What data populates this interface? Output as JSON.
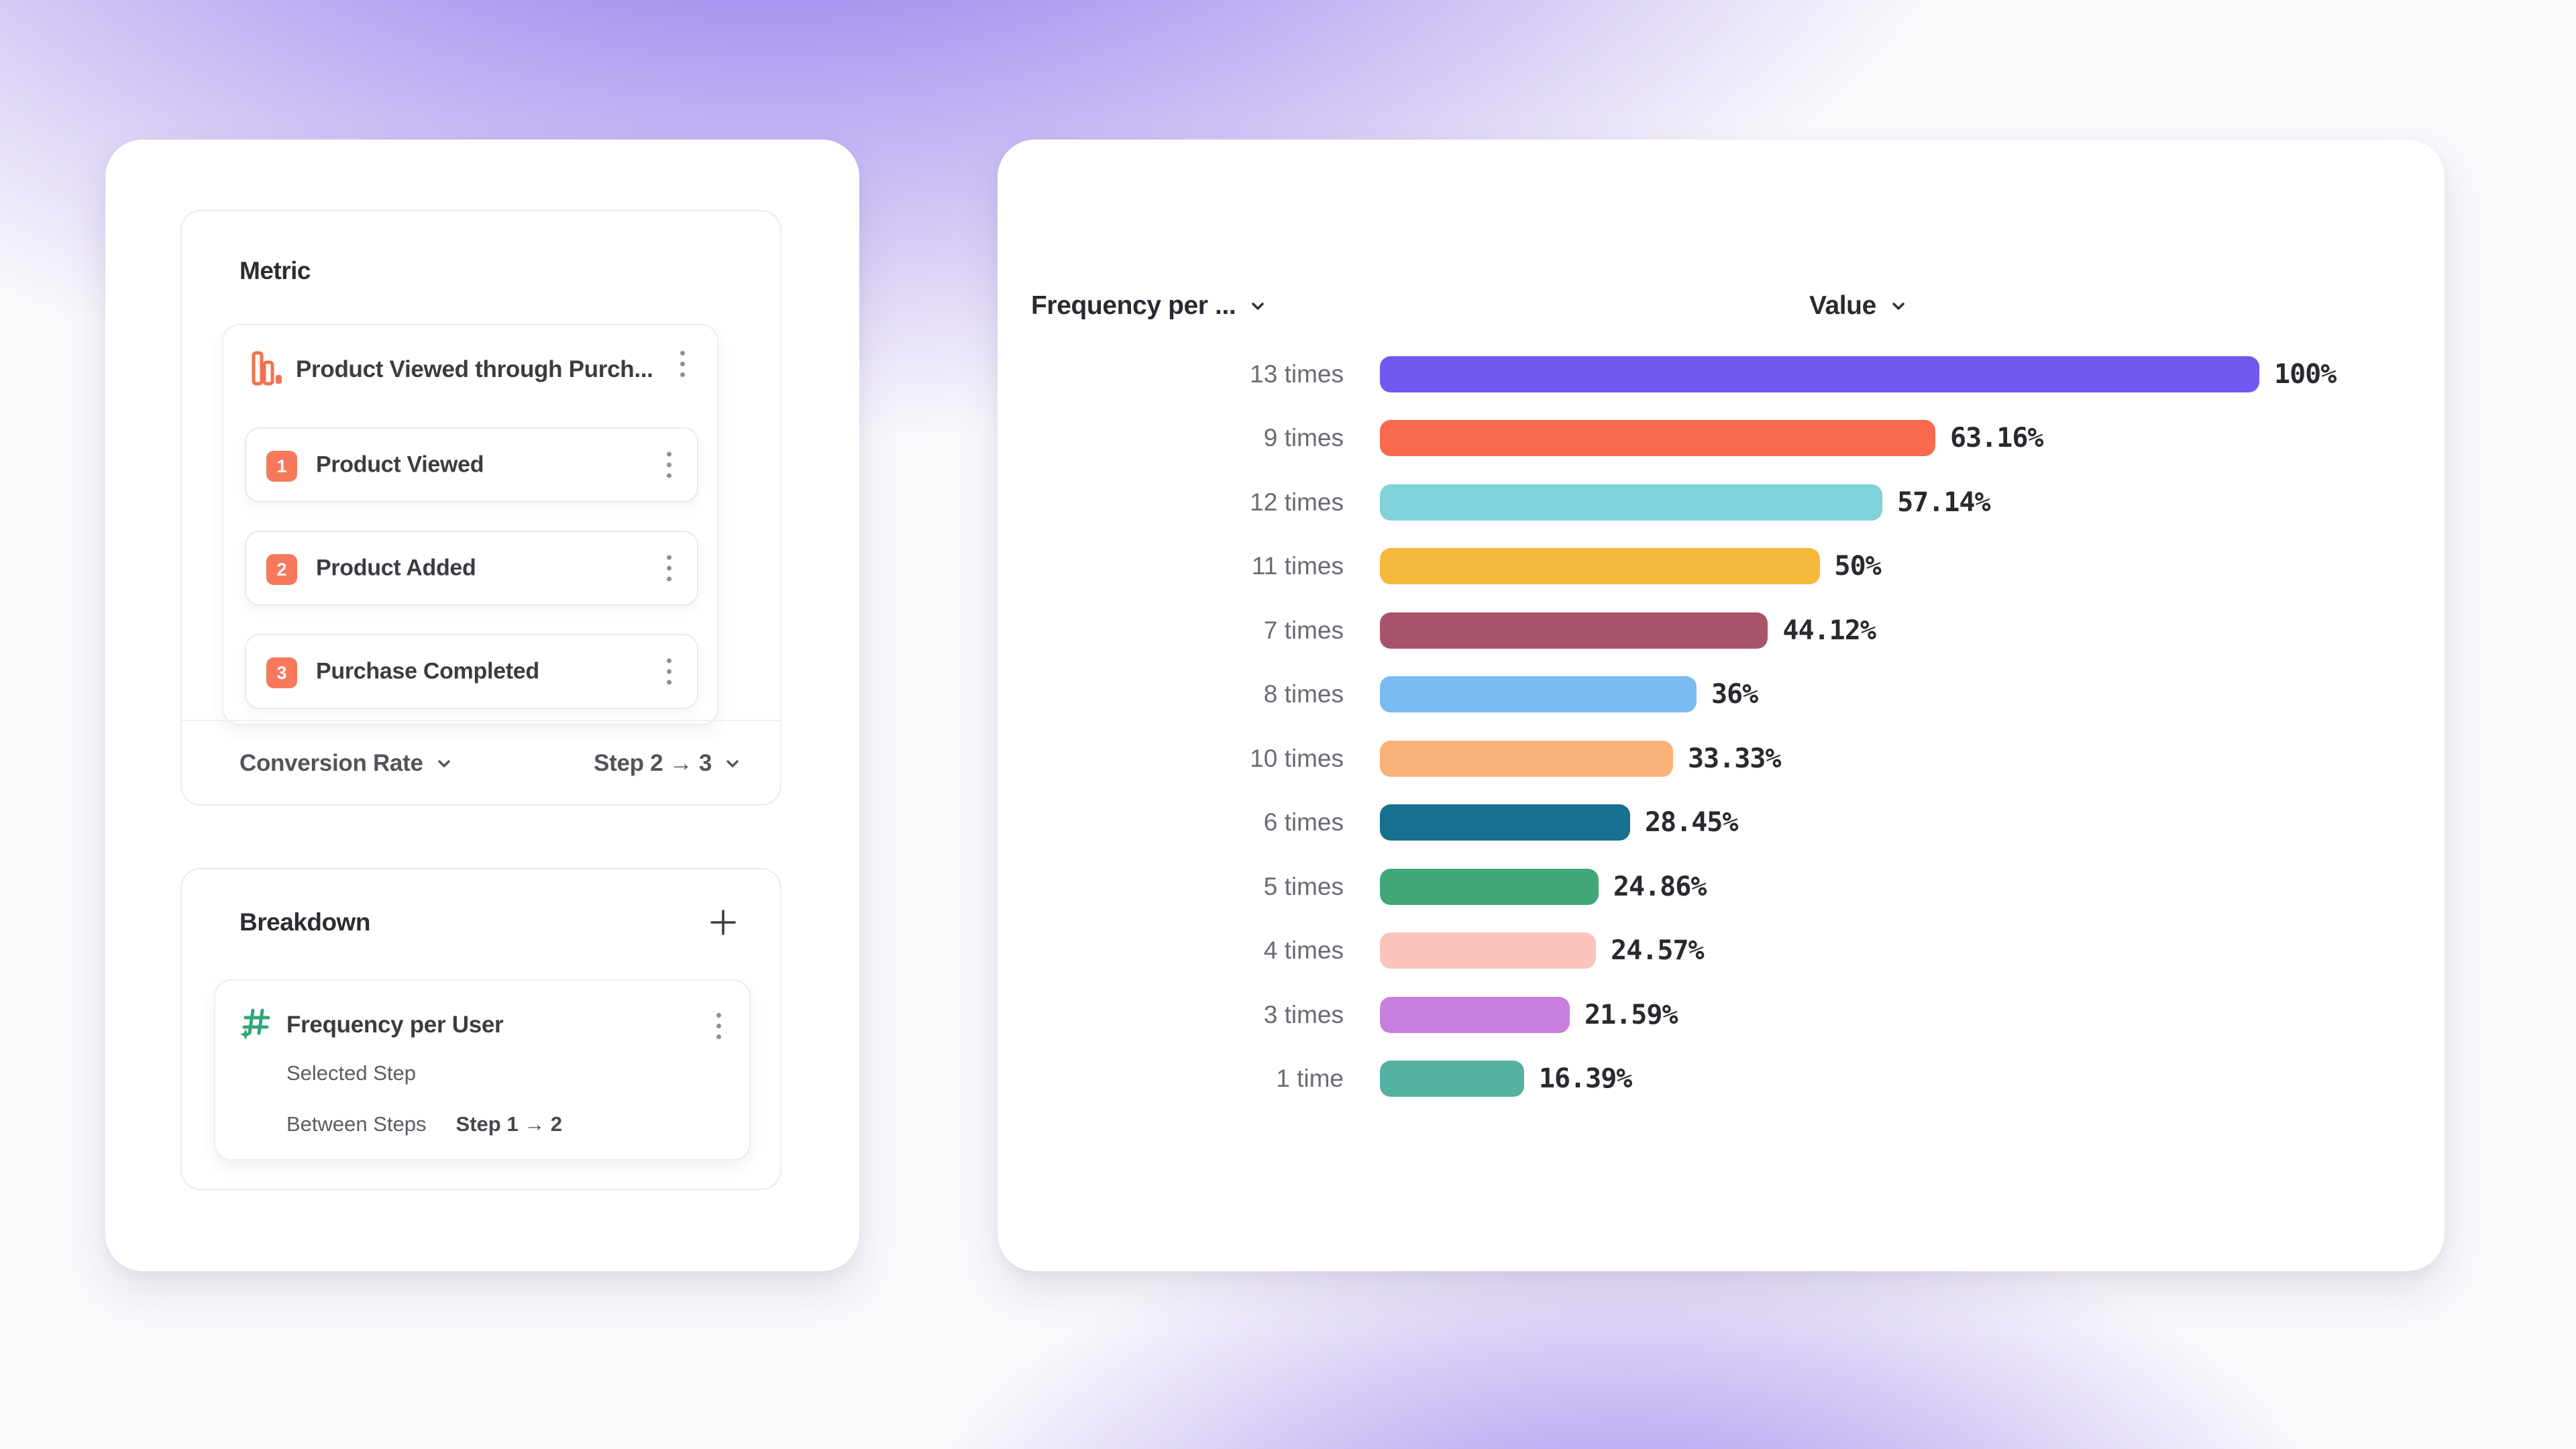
{
  "page": {
    "bg_base": "#FAF8FB",
    "glow_color": "#7656E8"
  },
  "accent": {
    "orange": "#F4714F",
    "badge_orange": "#F8785C",
    "green": "#2EA876"
  },
  "metric_panel": {
    "title": "Metric",
    "funnel_name": "Product Viewed through Purch...",
    "steps": [
      {
        "num": "1",
        "label": "Product Viewed"
      },
      {
        "num": "2",
        "label": "Product Added"
      },
      {
        "num": "3",
        "label": "Purchase Completed"
      }
    ],
    "conversion_label": "Conversion Rate",
    "step_range_label": "Step 2 → 3"
  },
  "breakdown_panel": {
    "title": "Breakdown",
    "item_name": "Frequency per User",
    "selected_step_label": "Selected Step",
    "between_steps_label": "Between Steps",
    "between_steps_value": "Step 1 → 2"
  },
  "chart": {
    "category_header": "Frequency per ...",
    "value_header": "Value"
  },
  "chart_data": {
    "type": "bar",
    "orientation": "horizontal",
    "title": "",
    "xlabel": "Value",
    "ylabel": "Frequency per User",
    "xlim": [
      0,
      100
    ],
    "grid": false,
    "legend": "none",
    "categories": [
      "13 times",
      "9 times",
      "12 times",
      "11 times",
      "7 times",
      "8 times",
      "10 times",
      "6 times",
      "5 times",
      "4 times",
      "3 times",
      "1 time"
    ],
    "values": [
      100,
      63.16,
      57.14,
      50,
      44.12,
      36,
      33.33,
      28.45,
      24.86,
      24.57,
      21.59,
      16.39
    ],
    "value_labels": [
      "100%",
      "63.16%",
      "57.14%",
      "50%",
      "44.12%",
      "36%",
      "33.33%",
      "28.45%",
      "24.86%",
      "24.57%",
      "21.59%",
      "16.39%"
    ],
    "colors": [
      "#7257F0",
      "#F8694E",
      "#7FD2DA",
      "#F6B83C",
      "#A9536B",
      "#79BBF2",
      "#FAB278",
      "#16708F",
      "#3FA876",
      "#FAC4BA",
      "#C87EDD",
      "#54B3A3"
    ]
  }
}
